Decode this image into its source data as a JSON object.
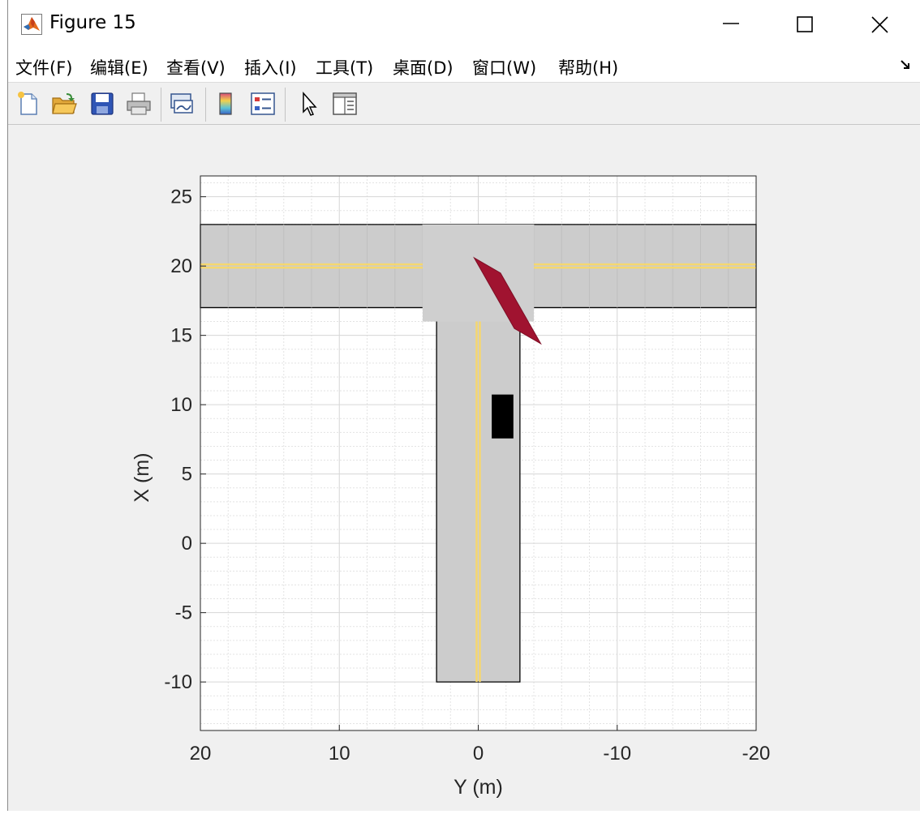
{
  "window": {
    "title": "Figure 15",
    "icon": "matlab-logo-icon"
  },
  "menubar": {
    "items": [
      "文件(F)",
      "编辑(E)",
      "查看(V)",
      "插入(I)",
      "工具(T)",
      "桌面(D)",
      "窗口(W)",
      "帮助(H)"
    ]
  },
  "toolbar": {
    "buttons": [
      {
        "icon": "new-figure-icon"
      },
      {
        "icon": "open-file-icon"
      },
      {
        "icon": "save-icon"
      },
      {
        "icon": "print-icon"
      },
      {
        "icon": "link-plot-icon"
      },
      {
        "icon": "insert-colorbar-icon"
      },
      {
        "icon": "insert-legend-icon"
      },
      {
        "icon": "edit-plot-pointer-icon"
      },
      {
        "icon": "property-inspector-icon"
      }
    ]
  },
  "chart_data": {
    "type": "scenario-plot",
    "xlabel": "Y (m)",
    "ylabel": "X (m)",
    "xlim": [
      20,
      -20
    ],
    "ylim": [
      -13.5,
      26.5
    ],
    "x_ticks": [
      20,
      10,
      0,
      -10,
      -20
    ],
    "y_ticks": [
      -10,
      -5,
      0,
      5,
      10,
      15,
      20,
      25
    ],
    "grid": true,
    "minor_grid": true,
    "colors": {
      "road": "#cccccc",
      "lane_marking": "#f5d76e",
      "vehicle_red": "#a01330",
      "vehicle_black": "#000000"
    },
    "roads": [
      {
        "name": "horizontal-road",
        "y_range": [
          20,
          -20
        ],
        "x_range": [
          17,
          23
        ]
      },
      {
        "name": "vertical-road",
        "y_range": [
          3,
          -3
        ],
        "x_range": [
          -10,
          17
        ]
      }
    ],
    "lane_markings": [
      {
        "y": [
          20,
          4
        ],
        "x": [
          20,
          20
        ]
      },
      {
        "y": [
          -4,
          -20
        ],
        "x": [
          20,
          20
        ]
      },
      {
        "y": [
          0,
          0
        ],
        "x": [
          -10,
          16
        ]
      }
    ],
    "vehicles": [
      {
        "name": "red-vehicle",
        "corners": [
          [
            0.3,
            20.6
          ],
          [
            -1.6,
            19.5
          ],
          [
            -4.5,
            14.4
          ],
          [
            -2.6,
            15.5
          ]
        ]
      },
      {
        "name": "black-vehicle",
        "corners": [
          [
            -1,
            7.6
          ],
          [
            -2.5,
            7.6
          ],
          [
            -2.5,
            10.7
          ],
          [
            -1,
            10.7
          ]
        ]
      }
    ]
  }
}
